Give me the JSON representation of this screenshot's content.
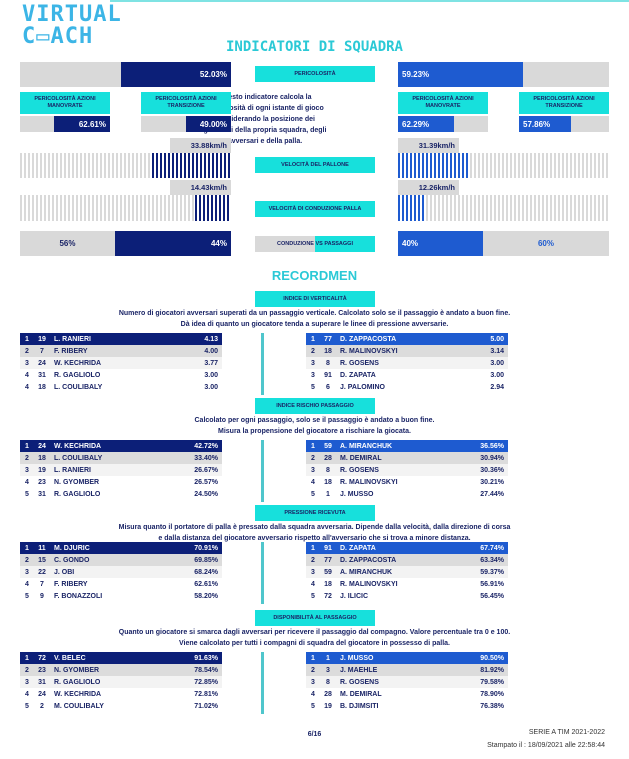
{
  "logo": {
    "line1": "VIRTUAL",
    "line2": "C▭ACH"
  },
  "title": "INDICATORI DI SQUADRA",
  "colors": {
    "home": "#0c1f78",
    "away": "#1e5bd0",
    "accent": "#17e0dc"
  },
  "indicators": {
    "pericolosita": {
      "label": "PERICOLOSITÀ",
      "home": "52.03%",
      "away": "59.23%",
      "home_pct": 52.03,
      "away_pct": 59.23
    },
    "description": "Questo indicatore calcola la pericolosità di ogni istante di gioco considerando la posizione dei giocatori della propria squadra, degli avversari e della palla.",
    "manovrate": {
      "label": "PERICOLOSITÀ AZIONI MANOVRATE",
      "home": "62.61%",
      "away": "62.29%"
    },
    "transizione": {
      "label": "PERICOLOSITÀ AZIONI TRANSIZIONE",
      "home": "49.00%",
      "away": "57.86%"
    },
    "velocita_pallone": {
      "label": "VELOCITÀ DEL PALLONE",
      "home": "33.88km/h",
      "away": "31.39km/h"
    },
    "velocita_conduzione": {
      "label": "VELOCITÀ DI CONDUZIONE PALLA",
      "home": "14.43km/h",
      "away": "12.26km/h"
    },
    "conduzione_passaggi": {
      "label": "CONDUZIONE VS PASSAGGI",
      "home_conduzione": "56%",
      "home_passaggi": "44%",
      "away_left": "40%",
      "away_right": "60%"
    }
  },
  "recordmen_title": "RECORDMEN",
  "sections": [
    {
      "label": "INDICE DI VERTICALITÀ",
      "desc": [
        "Numero di giocatori avversari superati da un passaggio verticale. Calcolato solo se il passaggio è andato a buon fine.",
        "Dà idea di quanto un giocatore tenda a superare le linee di pressione avversarie."
      ],
      "home": [
        [
          "1",
          "19",
          "L. RANIERI",
          "4.13"
        ],
        [
          "2",
          "7",
          "F. RIBERY",
          "4.00"
        ],
        [
          "3",
          "24",
          "W. KECHRIDA",
          "3.77"
        ],
        [
          "4",
          "31",
          "R. GAGLIOLO",
          "3.00"
        ],
        [
          "4",
          "18",
          "L. COULIBALY",
          "3.00"
        ]
      ],
      "away": [
        [
          "1",
          "77",
          "D. ZAPPACOSTA",
          "5.00"
        ],
        [
          "2",
          "18",
          "R. MALINOVSKYI",
          "3.14"
        ],
        [
          "3",
          "8",
          "R. GOSENS",
          "3.00"
        ],
        [
          "3",
          "91",
          "D. ZAPATA",
          "3.00"
        ],
        [
          "5",
          "6",
          "J. PALOMINO",
          "2.94"
        ]
      ]
    },
    {
      "label": "INDICE RISCHIO PASSAGGIO",
      "desc": [
        "Calcolato per ogni passaggio, solo se il passaggio è andato a buon fine.",
        "Misura la propensione del giocatore a rischiare la giocata."
      ],
      "home": [
        [
          "1",
          "24",
          "W. KECHRIDA",
          "42.72%"
        ],
        [
          "2",
          "18",
          "L. COULIBALY",
          "33.40%"
        ],
        [
          "3",
          "19",
          "L. RANIERI",
          "26.67%"
        ],
        [
          "4",
          "23",
          "N. GYOMBER",
          "26.57%"
        ],
        [
          "5",
          "31",
          "R. GAGLIOLO",
          "24.50%"
        ]
      ],
      "away": [
        [
          "1",
          "59",
          "A. MIRANCHUK",
          "36.56%"
        ],
        [
          "2",
          "28",
          "M. DEMIRAL",
          "30.94%"
        ],
        [
          "3",
          "8",
          "R. GOSENS",
          "30.36%"
        ],
        [
          "4",
          "18",
          "R. MALINOVSKYI",
          "30.21%"
        ],
        [
          "5",
          "1",
          "J. MUSSO",
          "27.44%"
        ]
      ]
    },
    {
      "label": "PRESSIONE RICEVUTA",
      "desc": [
        "Misura quanto il portatore di palla è pressato dalla squadra avversaria. Dipende dalla velocità, dalla direzione di corsa",
        "e dalla distanza del giocatore avversario rispetto all'avversario che si trova a minore distanza."
      ],
      "home": [
        [
          "1",
          "11",
          "M. DJURIC",
          "70.91%"
        ],
        [
          "2",
          "15",
          "C. GONDO",
          "69.85%"
        ],
        [
          "3",
          "22",
          "J. OBI",
          "68.24%"
        ],
        [
          "4",
          "7",
          "F. RIBERY",
          "62.61%"
        ],
        [
          "5",
          "9",
          "F. BONAZZOLI",
          "58.20%"
        ]
      ],
      "away": [
        [
          "1",
          "91",
          "D. ZAPATA",
          "67.74%"
        ],
        [
          "2",
          "77",
          "D. ZAPPACOSTA",
          "63.34%"
        ],
        [
          "3",
          "59",
          "A. MIRANCHUK",
          "59.37%"
        ],
        [
          "4",
          "18",
          "R. MALINOVSKYI",
          "56.91%"
        ],
        [
          "5",
          "72",
          "J. ILICIC",
          "56.45%"
        ]
      ]
    },
    {
      "label": "DISPONIBILITÀ AL PASSAGGIO",
      "desc": [
        "Quanto un giocatore si smarca dagli avversari per ricevere il passaggio dal compagno. Valore percentuale tra 0 e 100.",
        "Viene calcolato per tutti i compagni di squadra del giocatore in possesso di palla."
      ],
      "home": [
        [
          "1",
          "72",
          "V. BELEC",
          "91.63%"
        ],
        [
          "2",
          "23",
          "N. GYOMBER",
          "78.54%"
        ],
        [
          "3",
          "31",
          "R. GAGLIOLO",
          "72.85%"
        ],
        [
          "4",
          "24",
          "W. KECHRIDA",
          "72.81%"
        ],
        [
          "5",
          "2",
          "M. COULIBALY",
          "71.02%"
        ]
      ],
      "away": [
        [
          "1",
          "1",
          "J. MUSSO",
          "90.50%"
        ],
        [
          "2",
          "3",
          "J. MAEHLE",
          "81.92%"
        ],
        [
          "3",
          "8",
          "R. GOSENS",
          "79.58%"
        ],
        [
          "4",
          "28",
          "M. DEMIRAL",
          "78.90%"
        ],
        [
          "5",
          "19",
          "B. DJIMSITI",
          "76.38%"
        ]
      ]
    }
  ],
  "footer": {
    "page": "6/16",
    "league": "SERIE A TIM 2021-2022",
    "printed": "Stampato il : 18/09/2021 alle 22:58:44"
  }
}
